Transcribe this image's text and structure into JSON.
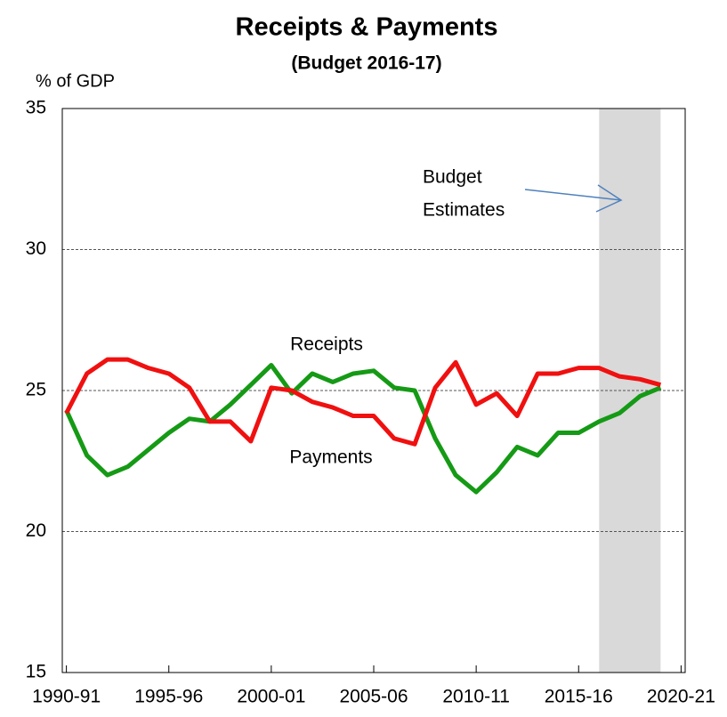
{
  "chart_data": {
    "type": "line",
    "title": "Receipts & Payments",
    "subtitle": "(Budget 2016-17)",
    "y_label": "% of GDP",
    "x": [
      1990,
      1991,
      1992,
      1993,
      1994,
      1995,
      1996,
      1997,
      1998,
      1999,
      2000,
      2001,
      2002,
      2003,
      2004,
      2005,
      2006,
      2007,
      2008,
      2009,
      2010,
      2011,
      2012,
      2013,
      2014,
      2015,
      2016,
      2017,
      2018,
      2019
    ],
    "series": [
      {
        "name": "Receipts",
        "color": "#159a15",
        "values": [
          24.3,
          22.7,
          22.0,
          22.3,
          22.9,
          23.5,
          24.0,
          23.9,
          24.5,
          25.2,
          25.9,
          24.9,
          25.6,
          25.3,
          25.6,
          25.7,
          25.1,
          25.0,
          23.3,
          22.0,
          21.4,
          22.1,
          23.0,
          22.7,
          23.5,
          23.5,
          23.9,
          24.2,
          24.8,
          25.1
        ]
      },
      {
        "name": "Payments",
        "color": "#f01010",
        "values": [
          24.2,
          25.6,
          26.1,
          26.1,
          25.8,
          25.6,
          25.1,
          23.9,
          23.9,
          23.2,
          25.1,
          25.0,
          24.6,
          24.4,
          24.1,
          24.1,
          23.3,
          23.1,
          25.1,
          26.0,
          24.5,
          24.9,
          24.1,
          25.6,
          25.6,
          25.8,
          25.8,
          25.5,
          25.4,
          25.2
        ]
      }
    ],
    "xlim": [
      1989.8,
      2020.2
    ],
    "xticks": [
      {
        "value": 1990,
        "label": "1990-91"
      },
      {
        "value": 1995,
        "label": "1995-96"
      },
      {
        "value": 2000,
        "label": "2000-01"
      },
      {
        "value": 2005,
        "label": "2005-06"
      },
      {
        "value": 2010,
        "label": "2010-11"
      },
      {
        "value": 2015,
        "label": "2015-16"
      },
      {
        "value": 2020,
        "label": "2020-21"
      }
    ],
    "ylim": [
      15,
      35
    ],
    "yticks": [
      15,
      20,
      25,
      30,
      35
    ],
    "grid": true,
    "shade": [
      2016,
      2019
    ],
    "shade_color": "#d9d9d9",
    "annotation": {
      "lines": [
        "Budget",
        "Estimates"
      ],
      "arrow_color": "#4f81bd"
    }
  }
}
